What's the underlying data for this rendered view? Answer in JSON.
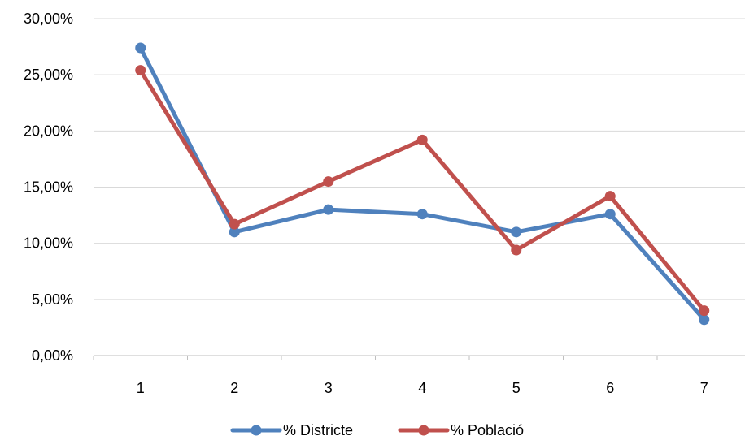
{
  "chart_data": {
    "type": "line",
    "title": "",
    "xlabel": "",
    "ylabel": "",
    "categories": [
      "1",
      "2",
      "3",
      "4",
      "5",
      "6",
      "7"
    ],
    "y_tick_labels": [
      "0,00%",
      "5,00%",
      "10,00%",
      "15,00%",
      "20,00%",
      "25,00%",
      "30,00%"
    ],
    "ylim": [
      0,
      30
    ],
    "y_ticks": [
      0,
      5,
      10,
      15,
      20,
      25,
      30
    ],
    "grid": true,
    "legend_position": "bottom",
    "series": [
      {
        "name": "% Districte",
        "color": "#4F81BD",
        "values": [
          27.4,
          11.0,
          13.0,
          12.6,
          11.0,
          12.6,
          3.2
        ]
      },
      {
        "name": "% Població",
        "color": "#C0504D",
        "values": [
          25.4,
          11.7,
          15.5,
          19.2,
          9.4,
          14.2,
          4.0
        ]
      }
    ]
  }
}
